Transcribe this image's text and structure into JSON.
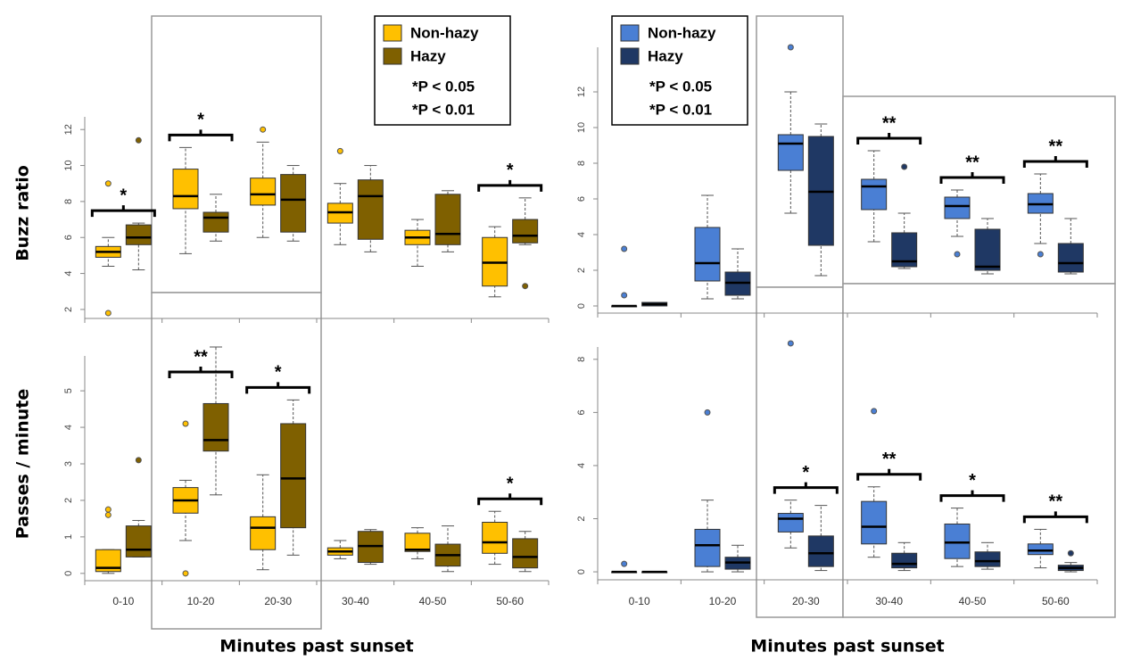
{
  "chart_data": [
    {
      "type": "box",
      "ylabel": "Buzz ratio",
      "ylim": [
        1.5,
        13.2
      ],
      "yticks": [
        2,
        4,
        6,
        8,
        10,
        12
      ],
      "legend_notes": [
        "*P < 0.05",
        "*P < 0.01"
      ],
      "series": [
        {
          "name": "Non-hazy",
          "color": "#ffc000",
          "boxes": [
            {
              "whislo": 4.4,
              "q1": 4.9,
              "med": 5.2,
              "q3": 5.5,
              "whishi": 6.0,
              "fliers": [
                9.0,
                1.8
              ]
            },
            {
              "whislo": 5.1,
              "q1": 7.6,
              "med": 8.3,
              "q3": 9.8,
              "whishi": 11.0,
              "fliers": []
            },
            {
              "whislo": 6.0,
              "q1": 7.8,
              "med": 8.4,
              "q3": 9.3,
              "whishi": 11.3,
              "fliers": [
                12.0
              ]
            },
            {
              "whislo": 5.6,
              "q1": 6.8,
              "med": 7.4,
              "q3": 7.9,
              "whishi": 9.0,
              "fliers": [
                10.8
              ]
            },
            {
              "whislo": 4.4,
              "q1": 5.6,
              "med": 6.0,
              "q3": 6.4,
              "whishi": 7.0,
              "fliers": []
            },
            {
              "whislo": 2.7,
              "q1": 3.3,
              "med": 4.6,
              "q3": 6.0,
              "whishi": 6.6,
              "fliers": []
            }
          ]
        },
        {
          "name": "Hazy",
          "color": "#7f6000",
          "boxes": [
            {
              "whislo": 4.2,
              "q1": 5.6,
              "med": 6.0,
              "q3": 6.7,
              "whishi": 6.8,
              "fliers": [
                11.4
              ]
            },
            {
              "whislo": 5.8,
              "q1": 6.3,
              "med": 7.1,
              "q3": 7.4,
              "whishi": 8.4,
              "fliers": []
            },
            {
              "whislo": 5.8,
              "q1": 6.3,
              "med": 8.1,
              "q3": 9.5,
              "whishi": 10.0,
              "fliers": []
            },
            {
              "whislo": 5.2,
              "q1": 5.9,
              "med": 8.3,
              "q3": 9.2,
              "whishi": 10.0,
              "fliers": []
            },
            {
              "whislo": 5.2,
              "q1": 5.6,
              "med": 6.2,
              "q3": 8.4,
              "whishi": 8.6,
              "fliers": []
            },
            {
              "whislo": 5.6,
              "q1": 5.7,
              "med": 6.1,
              "q3": 7.0,
              "whishi": 8.2,
              "fliers": [
                3.3
              ]
            }
          ]
        }
      ],
      "significance": [
        {
          "category": 0,
          "label": "*"
        },
        {
          "category": 1,
          "label": "*"
        },
        {
          "category": 5,
          "label": "*"
        }
      ]
    },
    {
      "type": "box",
      "ylabel": "Passes / minute",
      "xlabel": "Minutes past sunset",
      "categories": [
        "0-10",
        "10-20",
        "20-30",
        "30-40",
        "40-50",
        "50-60"
      ],
      "ylim": [
        -0.2,
        6.2
      ],
      "yticks": [
        0,
        1,
        2,
        3,
        4,
        5
      ],
      "series": [
        {
          "color": "#ffc000",
          "boxes": [
            {
              "whislo": 0,
              "q1": 0.05,
              "med": 0.15,
              "q3": 0.65,
              "whishi": 0.65,
              "fliers": [
                1.6,
                1.75
              ]
            },
            {
              "whislo": 0.9,
              "q1": 1.65,
              "med": 2.0,
              "q3": 2.35,
              "whishi": 2.55,
              "fliers": [
                4.1,
                0
              ]
            },
            {
              "whislo": 0.1,
              "q1": 0.65,
              "med": 1.25,
              "q3": 1.55,
              "whishi": 2.7,
              "fliers": []
            },
            {
              "whislo": 0.4,
              "q1": 0.5,
              "med": 0.6,
              "q3": 0.7,
              "whishi": 0.9,
              "fliers": []
            },
            {
              "whislo": 0.4,
              "q1": 0.6,
              "med": 0.65,
              "q3": 1.1,
              "whishi": 1.25,
              "fliers": []
            },
            {
              "whislo": 0.25,
              "q1": 0.55,
              "med": 0.85,
              "q3": 1.4,
              "whishi": 1.7,
              "fliers": []
            }
          ]
        },
        {
          "color": "#7f6000",
          "boxes": [
            {
              "whislo": 0.45,
              "q1": 0.45,
              "med": 0.65,
              "q3": 1.3,
              "whishi": 1.45,
              "fliers": [
                3.1
              ]
            },
            {
              "whislo": 2.15,
              "q1": 3.35,
              "med": 3.65,
              "q3": 4.65,
              "whishi": 6.2,
              "fliers": []
            },
            {
              "whislo": 0.5,
              "q1": 1.25,
              "med": 2.6,
              "q3": 4.1,
              "whishi": 4.75,
              "fliers": []
            },
            {
              "whislo": 0.25,
              "q1": 0.3,
              "med": 0.75,
              "q3": 1.15,
              "whishi": 1.2,
              "fliers": []
            },
            {
              "whislo": 0.05,
              "q1": 0.2,
              "med": 0.5,
              "q3": 0.8,
              "whishi": 1.3,
              "fliers": []
            },
            {
              "whislo": 0.05,
              "q1": 0.15,
              "med": 0.45,
              "q3": 0.95,
              "whishi": 1.15,
              "fliers": []
            }
          ]
        }
      ],
      "significance": [
        {
          "category": 1,
          "label": "**"
        },
        {
          "category": 2,
          "label": "*"
        },
        {
          "category": 5,
          "label": "*"
        }
      ]
    },
    {
      "type": "box",
      "ylim": [
        -0.4,
        15
      ],
      "yticks": [
        0,
        2,
        4,
        6,
        8,
        10,
        12
      ],
      "legend_notes": [
        "*P < 0.05",
        "*P < 0.01"
      ],
      "series": [
        {
          "name": "Non-hazy",
          "color": "#4a7fd4",
          "boxes": [
            {
              "whislo": 0,
              "q1": 0,
              "med": 0,
              "q3": 0,
              "whishi": 0,
              "fliers": [
                3.2,
                0.6
              ]
            },
            {
              "whislo": 0.4,
              "q1": 1.4,
              "med": 2.4,
              "q3": 4.4,
              "whishi": 6.2,
              "fliers": []
            },
            {
              "whislo": 5.2,
              "q1": 7.6,
              "med": 9.1,
              "q3": 9.6,
              "whishi": 12.0,
              "fliers": [
                14.5
              ]
            },
            {
              "whislo": 3.6,
              "q1": 5.4,
              "med": 6.7,
              "q3": 7.1,
              "whishi": 8.7,
              "fliers": []
            },
            {
              "whislo": 3.9,
              "q1": 4.9,
              "med": 5.6,
              "q3": 6.1,
              "whishi": 6.5,
              "fliers": [
                2.9
              ]
            },
            {
              "whislo": 3.5,
              "q1": 5.2,
              "med": 5.7,
              "q3": 6.3,
              "whishi": 7.4,
              "fliers": [
                2.9
              ]
            }
          ]
        },
        {
          "name": "Hazy",
          "color": "#1f3864",
          "boxes": [
            {
              "whislo": 0,
              "q1": 0,
              "med": 0.1,
              "q3": 0.2,
              "whishi": 0.2,
              "fliers": []
            },
            {
              "whislo": 0.4,
              "q1": 0.6,
              "med": 1.3,
              "q3": 1.9,
              "whishi": 3.2,
              "fliers": []
            },
            {
              "whislo": 1.7,
              "q1": 3.4,
              "med": 6.4,
              "q3": 9.5,
              "whishi": 10.2,
              "fliers": []
            },
            {
              "whislo": 2.1,
              "q1": 2.2,
              "med": 2.5,
              "q3": 4.1,
              "whishi": 5.2,
              "fliers": [
                7.8
              ]
            },
            {
              "whislo": 1.8,
              "q1": 2.0,
              "med": 2.2,
              "q3": 4.3,
              "whishi": 4.9,
              "fliers": []
            },
            {
              "whislo": 1.8,
              "q1": 1.9,
              "med": 2.4,
              "q3": 3.5,
              "whishi": 4.9,
              "fliers": []
            }
          ]
        }
      ],
      "significance": [
        {
          "category": 3,
          "label": "**"
        },
        {
          "category": 4,
          "label": "**"
        },
        {
          "category": 5,
          "label": "**"
        }
      ]
    },
    {
      "type": "box",
      "xlabel": "Minutes past sunset",
      "categories": [
        "0-10",
        "10-20",
        "20-30",
        "30-40",
        "40-50",
        "50-60"
      ],
      "ylim": [
        -0.3,
        8.8
      ],
      "yticks": [
        0,
        2,
        4,
        6,
        8
      ],
      "series": [
        {
          "color": "#4a7fd4",
          "boxes": [
            {
              "whislo": 0,
              "q1": 0,
              "med": 0,
              "q3": 0,
              "whishi": 0,
              "fliers": [
                0.3
              ]
            },
            {
              "whislo": 0,
              "q1": 0.2,
              "med": 1.0,
              "q3": 1.6,
              "whishi": 2.7,
              "fliers": [
                6.0
              ]
            },
            {
              "whislo": 0.9,
              "q1": 1.5,
              "med": 2.0,
              "q3": 2.2,
              "whishi": 2.7,
              "fliers": [
                8.6
              ]
            },
            {
              "whislo": 0.55,
              "q1": 1.05,
              "med": 1.7,
              "q3": 2.65,
              "whishi": 3.2,
              "fliers": [
                6.05
              ]
            },
            {
              "whislo": 0.2,
              "q1": 0.5,
              "med": 1.1,
              "q3": 1.8,
              "whishi": 2.4,
              "fliers": []
            },
            {
              "whislo": 0.15,
              "q1": 0.65,
              "med": 0.8,
              "q3": 1.05,
              "whishi": 1.6,
              "fliers": []
            }
          ]
        },
        {
          "color": "#1f3864",
          "boxes": [
            {
              "whislo": 0,
              "q1": 0,
              "med": 0,
              "q3": 0,
              "whishi": 0,
              "fliers": []
            },
            {
              "whislo": 0,
              "q1": 0.1,
              "med": 0.35,
              "q3": 0.55,
              "whishi": 1.0,
              "fliers": []
            },
            {
              "whislo": 0.05,
              "q1": 0.2,
              "med": 0.7,
              "q3": 1.35,
              "whishi": 2.5,
              "fliers": []
            },
            {
              "whislo": 0.05,
              "q1": 0.15,
              "med": 0.3,
              "q3": 0.7,
              "whishi": 1.1,
              "fliers": []
            },
            {
              "whislo": 0.1,
              "q1": 0.2,
              "med": 0.4,
              "q3": 0.75,
              "whishi": 1.1,
              "fliers": []
            },
            {
              "whislo": 0,
              "q1": 0.05,
              "med": 0.15,
              "q3": 0.25,
              "whishi": 0.35,
              "fliers": [
                0.7
              ]
            }
          ]
        }
      ],
      "significance": [
        {
          "category": 2,
          "label": "*"
        },
        {
          "category": 3,
          "label": "**"
        },
        {
          "category": 4,
          "label": "*"
        },
        {
          "category": 5,
          "label": "**"
        }
      ]
    }
  ]
}
